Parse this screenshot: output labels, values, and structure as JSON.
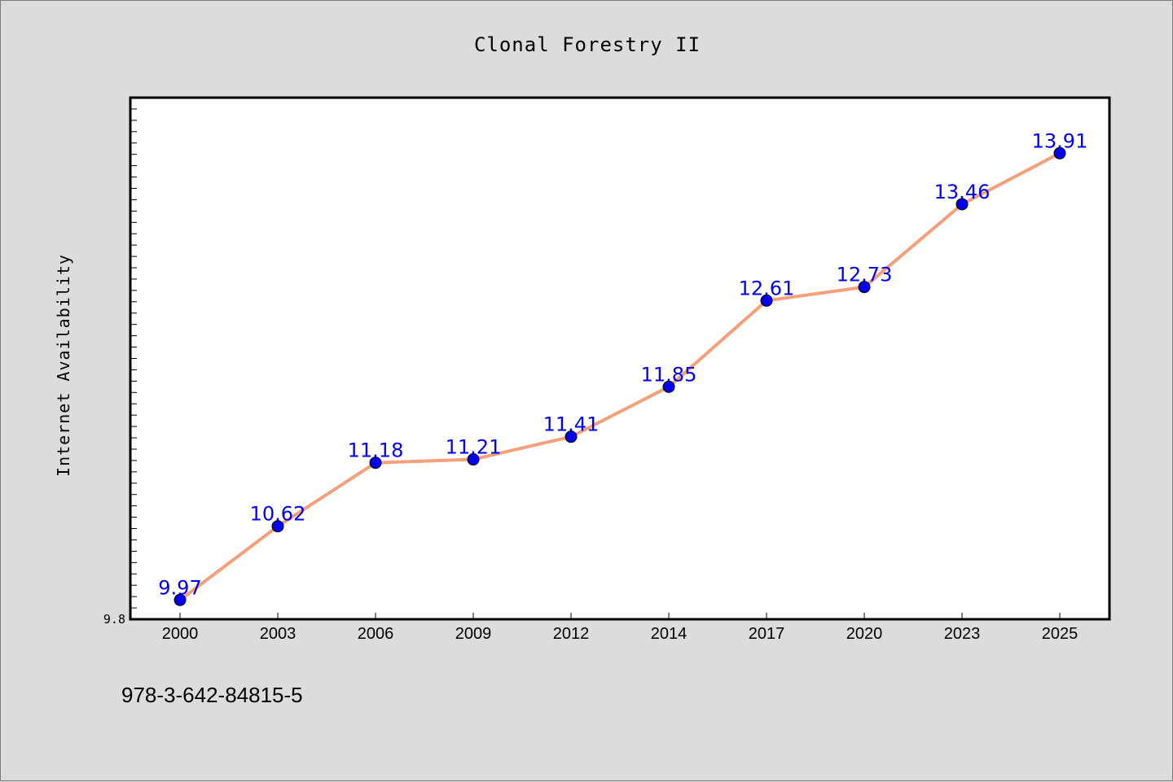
{
  "chart_data": {
    "type": "line",
    "title": "Clonal Forestry II",
    "xlabel": "",
    "ylabel": "Internet Availability",
    "categories": [
      "2000",
      "2003",
      "2006",
      "2009",
      "2012",
      "2014",
      "2017",
      "2020",
      "2023",
      "2025"
    ],
    "series": [
      {
        "values": [
          9.97,
          10.62,
          11.18,
          11.21,
          11.41,
          11.85,
          12.61,
          12.73,
          13.46,
          13.91
        ],
        "data_labels": [
          "9.97",
          "10.62",
          "11.18",
          "11.21",
          "11.41",
          "11.85",
          "12.61",
          "12.73",
          "13.46",
          "13.91"
        ]
      }
    ],
    "ylim": [
      9.8,
      14.4
    ],
    "y_tick_labels": [
      "9.8"
    ],
    "grid": false,
    "line_color": "#f4a07a",
    "marker_color": "#0000ee",
    "label_color": "#0000ee"
  },
  "footer": {
    "isbn": "978-3-642-84815-5"
  }
}
